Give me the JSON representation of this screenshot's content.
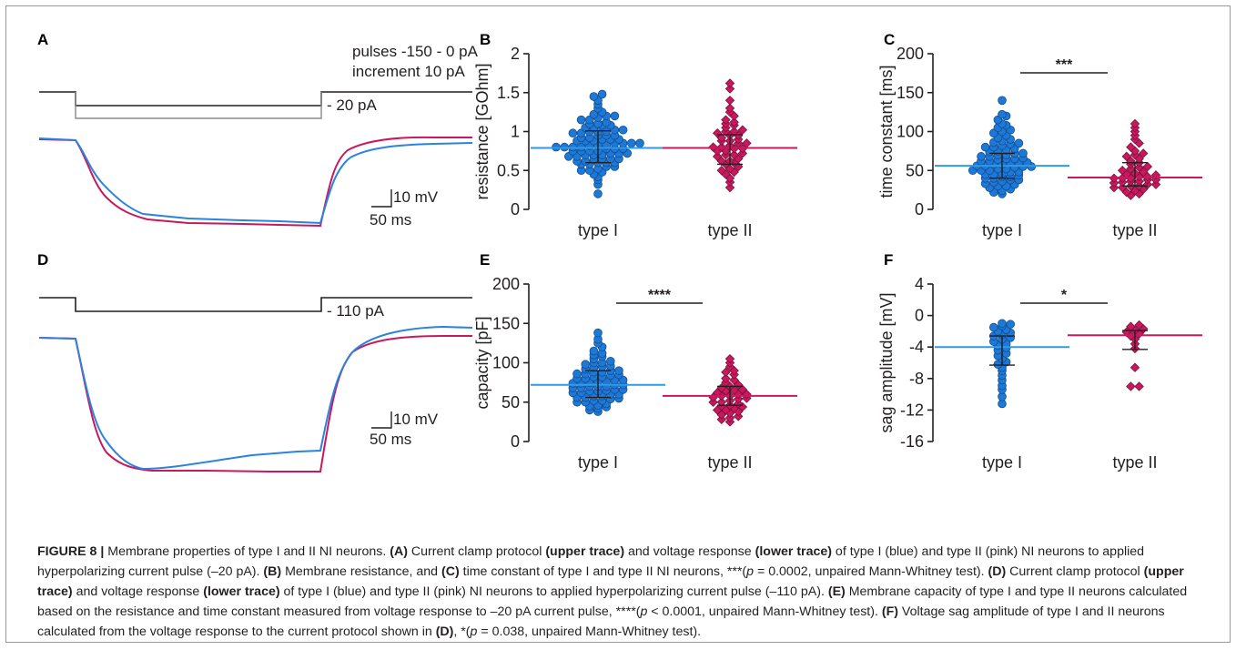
{
  "panels": {
    "A": {
      "label": "A",
      "protocol_line1": "pulses -150 - 0 pA",
      "protocol_line2": "increment 10 pA",
      "current_label": "- 20 pA",
      "scale_v": "10 mV",
      "scale_t": "50 ms"
    },
    "D": {
      "label": "D",
      "current_label": "- 110 pA",
      "scale_v": "10 mV",
      "scale_t": "50 ms"
    }
  },
  "colors": {
    "type_I": "#1f78d6",
    "type_II": "#c8195e",
    "median_I": "#2f9ae6",
    "median_II": "#c8195e"
  },
  "chart_data": [
    {
      "panel": "B",
      "type": "scatter",
      "categories": [
        "type I",
        "type II"
      ],
      "ylabel": "resistance [GOhm]",
      "ylim": [
        0,
        2
      ],
      "yticks": [
        "0",
        "0.5",
        "1",
        "1.5",
        "2"
      ],
      "median": [
        0.79,
        0.79
      ],
      "iqr": [
        [
          0.6,
          1.01
        ],
        [
          0.58,
          0.96
        ]
      ],
      "series": [
        {
          "values": [
            0.2,
            0.32,
            0.38,
            0.42,
            0.45,
            0.48,
            0.5,
            0.5,
            0.52,
            0.55,
            0.55,
            0.58,
            0.58,
            0.6,
            0.6,
            0.6,
            0.62,
            0.62,
            0.65,
            0.65,
            0.65,
            0.65,
            0.68,
            0.68,
            0.7,
            0.7,
            0.7,
            0.72,
            0.72,
            0.72,
            0.75,
            0.75,
            0.75,
            0.75,
            0.78,
            0.78,
            0.78,
            0.8,
            0.8,
            0.8,
            0.8,
            0.82,
            0.82,
            0.82,
            0.85,
            0.85,
            0.85,
            0.85,
            0.88,
            0.88,
            0.88,
            0.9,
            0.9,
            0.9,
            0.92,
            0.92,
            0.95,
            0.95,
            0.95,
            0.98,
            0.98,
            1.0,
            1.0,
            1.0,
            1.02,
            1.02,
            1.05,
            1.05,
            1.08,
            1.08,
            1.1,
            1.1,
            1.12,
            1.15,
            1.15,
            1.18,
            1.2,
            1.2,
            1.22,
            1.25,
            1.3,
            1.35,
            1.4,
            1.45,
            1.48
          ]
        },
        {
          "values": [
            0.28,
            0.35,
            0.4,
            0.45,
            0.48,
            0.5,
            0.52,
            0.55,
            0.58,
            0.6,
            0.62,
            0.62,
            0.65,
            0.68,
            0.7,
            0.7,
            0.72,
            0.75,
            0.75,
            0.78,
            0.78,
            0.8,
            0.8,
            0.82,
            0.85,
            0.85,
            0.88,
            0.88,
            0.9,
            0.92,
            0.95,
            0.95,
            0.98,
            1.0,
            1.0,
            1.02,
            1.05,
            1.08,
            1.1,
            1.12,
            1.15,
            1.2,
            1.25,
            1.3,
            1.4,
            1.55,
            1.62
          ]
        }
      ]
    },
    {
      "panel": "C",
      "type": "scatter",
      "categories": [
        "type I",
        "type II"
      ],
      "ylabel": "time constant [ms]",
      "ylim": [
        0,
        200
      ],
      "yticks": [
        "0",
        "50",
        "100",
        "150",
        "200"
      ],
      "median": [
        56,
        41
      ],
      "iqr": [
        [
          40,
          72
        ],
        [
          30,
          60
        ]
      ],
      "significance": "***",
      "series": [
        {
          "values": [
            20,
            22,
            24,
            26,
            28,
            30,
            30,
            32,
            33,
            35,
            36,
            38,
            38,
            40,
            40,
            42,
            42,
            44,
            45,
            45,
            46,
            48,
            48,
            50,
            50,
            50,
            52,
            52,
            54,
            55,
            55,
            56,
            56,
            58,
            58,
            60,
            60,
            60,
            62,
            62,
            64,
            65,
            65,
            66,
            68,
            68,
            70,
            70,
            72,
            72,
            74,
            75,
            76,
            78,
            80,
            80,
            82,
            84,
            85,
            86,
            88,
            90,
            92,
            95,
            98,
            100,
            102,
            105,
            108,
            110,
            115,
            120,
            122,
            140
          ]
        },
        {
          "values": [
            18,
            20,
            22,
            24,
            26,
            28,
            28,
            30,
            30,
            32,
            32,
            34,
            35,
            36,
            36,
            38,
            38,
            40,
            40,
            40,
            42,
            42,
            44,
            45,
            46,
            48,
            50,
            52,
            54,
            55,
            58,
            60,
            62,
            65,
            68,
            70,
            72,
            75,
            80,
            85,
            90,
            95,
            100,
            105,
            110
          ]
        }
      ]
    },
    {
      "panel": "E",
      "type": "scatter",
      "categories": [
        "type I",
        "type II"
      ],
      "ylabel": "capacity [pF]",
      "ylim": [
        0,
        200
      ],
      "yticks": [
        "0",
        "50",
        "100",
        "150",
        "200"
      ],
      "median": [
        72,
        58
      ],
      "iqr": [
        [
          56,
          90
        ],
        [
          46,
          70
        ]
      ],
      "significance": "****",
      "series": [
        {
          "values": [
            38,
            40,
            42,
            44,
            45,
            46,
            48,
            50,
            50,
            52,
            52,
            54,
            55,
            56,
            56,
            58,
            58,
            60,
            60,
            62,
            62,
            64,
            64,
            65,
            66,
            66,
            68,
            68,
            70,
            70,
            70,
            72,
            72,
            74,
            74,
            75,
            76,
            76,
            78,
            78,
            80,
            80,
            82,
            82,
            84,
            85,
            86,
            86,
            88,
            88,
            90,
            90,
            92,
            94,
            95,
            96,
            98,
            100,
            100,
            102,
            105,
            108,
            110,
            112,
            115,
            120,
            125,
            130,
            138
          ]
        },
        {
          "values": [
            25,
            28,
            30,
            32,
            34,
            36,
            38,
            40,
            40,
            42,
            44,
            45,
            46,
            48,
            50,
            50,
            52,
            54,
            55,
            56,
            58,
            58,
            60,
            60,
            62,
            64,
            65,
            66,
            68,
            70,
            72,
            75,
            78,
            80,
            85,
            88,
            90,
            95,
            100,
            105
          ]
        }
      ]
    },
    {
      "panel": "F",
      "type": "scatter",
      "categories": [
        "type I",
        "type II"
      ],
      "ylabel": "sag amplitude [mV]",
      "ylim": [
        -16,
        4
      ],
      "yticks": [
        "-16",
        "-12",
        "-8",
        "-4",
        "0",
        "4"
      ],
      "median": [
        -4,
        -2.5
      ],
      "iqr": [
        [
          -6.3,
          -2.6
        ],
        [
          -4.3,
          -1.9
        ]
      ],
      "significance": "*",
      "series": [
        {
          "values": [
            -11.2,
            -10.3,
            -9.4,
            -8.9,
            -8.2,
            -7.6,
            -7.0,
            -6.6,
            -6.2,
            -5.9,
            -5.5,
            -5.1,
            -4.8,
            -4.4,
            -4.1,
            -3.8,
            -3.6,
            -3.3,
            -3.0,
            -2.8,
            -2.6,
            -2.4,
            -2.2,
            -2.0,
            -1.8,
            -1.5,
            -1.3,
            -1.1,
            -1.0
          ]
        },
        {
          "values": [
            -9.0,
            -9.0,
            -6.6,
            -4.2,
            -3.6,
            -3.0,
            -2.6,
            -2.3,
            -2.1,
            -1.9,
            -1.7,
            -1.4,
            -1.2
          ]
        }
      ]
    }
  ],
  "caption": {
    "fig": "FIGURE 8 |",
    "s1": " Membrane properties of type I and II NI neurons. ",
    "a": "(A)",
    "s2": " Current clamp protocol ",
    "upper": "(upper trace)",
    "s3": " and voltage response ",
    "lower": "(lower trace)",
    "s4": " of type I (blue) and type II (pink) NI neurons to applied hyperpolarizing current pulse (–20 pA). ",
    "b": "(B)",
    "s5": " Membrane resistance, and ",
    "c": "(C)",
    "s6": " time constant of type I and type II NI neurons, ***(",
    "p1": "p",
    "s7": " = 0.0002, unpaired Mann-Whitney test). ",
    "d": "(D)",
    "s8": " Current clamp protocol ",
    "upper2": "(upper trace)",
    "s9": " and voltage response ",
    "lower2": "(lower trace)",
    "s10": " of type I (blue) and type II (pink) NI neurons to applied hyperpolarizing current pulse (–110 pA). ",
    "e": "(E)",
    "s11": " Membrane capacity of type I and type II neurons calculated based on the resistance and time constant measured from voltage response to –20 pA current pulse, ****(",
    "p2": "p",
    "s12": " < 0.0001, unpaired Mann-Whitney test). ",
    "f": "(F)",
    "s13": " Voltage sag amplitude of type I and II neurons calculated from the voltage response to the current protocol shown in ",
    "d2": "(D)",
    "s14": ", *(",
    "p3": "p",
    "s15": " = 0.038, unpaired Mann-Whitney test)."
  }
}
